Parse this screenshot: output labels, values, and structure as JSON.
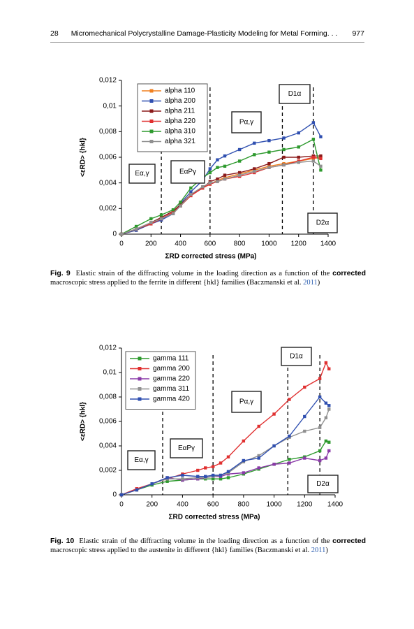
{
  "header": {
    "page": "28",
    "title": "Micromechanical Polycrystalline Damage-Plasticity Modeling for Metal Forming. . .",
    "right": "977"
  },
  "captions": [
    {
      "label": "Fig. 9",
      "text_1": "Elastic strain of the diffracting volume in the loading direction as a function of the",
      "bold": "corrected",
      "text_2": "macroscopic stress applied to the ferrite in different {hkl} families (Baczmanski et al. ",
      "link": "2011",
      "text_3": ")"
    },
    {
      "label": "Fig. 10",
      "text_1": "Elastic strain of the diffracting volume in the loading direction as a function of the",
      "bold": "corrected",
      "text_2": "macroscopic stress applied to the austenite in different {hkl} families (Baczmanski et al. ",
      "link": "2011",
      "text_3": ")"
    }
  ],
  "chart_data": [
    {
      "type": "line",
      "xlabel": "ΣRD corrected stress (MPa)",
      "ylabel": "<εRD> {hkl}",
      "xlim": [
        0,
        1400
      ],
      "xticks": [
        0,
        200,
        400,
        600,
        800,
        1000,
        1200,
        1400
      ],
      "ylim": [
        0,
        0.012
      ],
      "yticks": [
        0,
        {
          "value": 0.002,
          "label": "0,002"
        },
        {
          "value": 0.004,
          "label": "0,004"
        },
        {
          "value": 0.006,
          "label": "0,006"
        },
        {
          "value": 0.008,
          "label": "0,008"
        },
        {
          "value": 0.01,
          "label": "0,01"
        },
        {
          "value": 0.012,
          "label": "0,012"
        }
      ],
      "vlines": [
        270,
        600,
        1090,
        1300
      ],
      "annotations": [
        "Eα,γ",
        "EαPγ",
        "Pα,γ",
        "D1α",
        "D2α"
      ],
      "x": [
        0,
        100,
        200,
        270,
        350,
        400,
        470,
        550,
        600,
        650,
        700,
        800,
        900,
        1000,
        1100,
        1200,
        1300,
        1350
      ],
      "series": [
        {
          "name": "alpha 110",
          "color": "#f08020",
          "values": [
            0,
            0.0003,
            0.0008,
            0.0012,
            0.0016,
            0.0023,
            0.0031,
            0.0036,
            0.0039,
            0.0042,
            0.0044,
            0.0047,
            0.005,
            0.0053,
            0.0055,
            0.0057,
            0.0059,
            0.006
          ]
        },
        {
          "name": "alpha 200",
          "color": "#2f4fb0",
          "values": [
            0,
            0.0003,
            0.0008,
            0.0011,
            0.0016,
            0.0024,
            0.0033,
            0.0042,
            0.0051,
            0.0058,
            0.0061,
            0.0066,
            0.0071,
            0.0073,
            0.0075,
            0.0079,
            0.0087,
            0.0076
          ]
        },
        {
          "name": "alpha 211",
          "color": "#8b1a1a",
          "values": [
            0,
            0.0004,
            0.0009,
            0.0013,
            0.0018,
            0.0023,
            0.0031,
            0.0036,
            0.0041,
            0.0043,
            0.0046,
            0.0048,
            0.0051,
            0.0055,
            0.006,
            0.006,
            0.0061,
            0.0061
          ]
        },
        {
          "name": "alpha 220",
          "color": "#e03030",
          "values": [
            0,
            0.0004,
            0.0008,
            0.0012,
            0.0017,
            0.0022,
            0.003,
            0.0036,
            0.0039,
            0.0041,
            0.0043,
            0.0045,
            0.0048,
            0.0052,
            0.0054,
            0.0057,
            0.006,
            0.0059
          ]
        },
        {
          "name": "alpha 310",
          "color": "#2e9a2e",
          "values": [
            0,
            0.0006,
            0.0012,
            0.0015,
            0.0019,
            0.0025,
            0.0036,
            0.0044,
            0.0048,
            0.0052,
            0.0053,
            0.0057,
            0.0062,
            0.0064,
            0.0066,
            0.0068,
            0.0074,
            0.005
          ]
        },
        {
          "name": "alpha 321",
          "color": "#909090",
          "values": [
            0,
            0.0004,
            0.0009,
            0.0012,
            0.0016,
            0.0022,
            0.0031,
            0.0037,
            0.004,
            0.0041,
            0.0043,
            0.0046,
            0.0049,
            0.0052,
            0.0054,
            0.0056,
            0.0057,
            0.0053
          ]
        }
      ]
    },
    {
      "type": "line",
      "xlabel": "ΣRD corrected stress (MPa)",
      "ylabel": "<εRD> {hkl}",
      "xlim": [
        0,
        1400
      ],
      "xticks": [
        0,
        200,
        400,
        600,
        800,
        1000,
        1200,
        1400
      ],
      "ylim": [
        0,
        0.012
      ],
      "yticks": [
        0,
        {
          "value": 0.002,
          "label": "0,002"
        },
        {
          "value": 0.004,
          "label": "0,004"
        },
        {
          "value": 0.006,
          "label": "0,006"
        },
        {
          "value": 0.008,
          "label": "0,008"
        },
        {
          "value": 0.01,
          "label": "0,01"
        },
        {
          "value": 0.012,
          "label": "0,012"
        }
      ],
      "vlines": [
        270,
        600,
        1090,
        1300
      ],
      "annotations": [
        "Eα,γ",
        "EαPγ",
        "Pα,γ",
        "D1α",
        "D2α"
      ],
      "x": [
        0,
        100,
        200,
        300,
        400,
        500,
        550,
        600,
        650,
        700,
        800,
        900,
        1000,
        1100,
        1200,
        1300,
        1340,
        1360
      ],
      "series": [
        {
          "name": "gamma 111",
          "color": "#2e9a2e",
          "values": [
            0,
            0.0004,
            0.0008,
            0.0011,
            0.0012,
            0.0013,
            0.0013,
            0.0013,
            0.0013,
            0.0014,
            0.0017,
            0.0021,
            0.0025,
            0.0029,
            0.0031,
            0.0036,
            0.0044,
            0.0043
          ]
        },
        {
          "name": "gamma 200",
          "color": "#e03030",
          "values": [
            0,
            0.0005,
            0.0009,
            0.0013,
            0.0017,
            0.002,
            0.0022,
            0.0023,
            0.0026,
            0.0031,
            0.0044,
            0.0056,
            0.0066,
            0.0078,
            0.0088,
            0.0095,
            0.0108,
            0.0103
          ]
        },
        {
          "name": "gamma 220",
          "color": "#8a3aa8",
          "values": [
            0,
            0.0004,
            0.0009,
            0.0014,
            0.0012,
            0.0013,
            0.0014,
            0.0015,
            0.0015,
            0.0017,
            0.0018,
            0.0022,
            0.0025,
            0.0026,
            0.003,
            0.0028,
            0.003,
            0.0036
          ]
        },
        {
          "name": "gamma 311",
          "color": "#909090",
          "values": [
            0,
            0.0004,
            0.0009,
            0.0013,
            0.0013,
            0.0014,
            0.0014,
            0.0015,
            0.0016,
            0.0018,
            0.0027,
            0.0032,
            0.004,
            0.0047,
            0.0052,
            0.0055,
            0.0063,
            0.007
          ]
        },
        {
          "name": "gamma 420",
          "color": "#2f4fb0",
          "values": [
            0,
            0.0004,
            0.0009,
            0.0014,
            0.0016,
            0.0015,
            0.0015,
            0.0016,
            0.0016,
            0.0019,
            0.0028,
            0.003,
            0.004,
            0.0048,
            0.0064,
            0.008,
            0.0075,
            0.0073
          ]
        }
      ]
    }
  ]
}
